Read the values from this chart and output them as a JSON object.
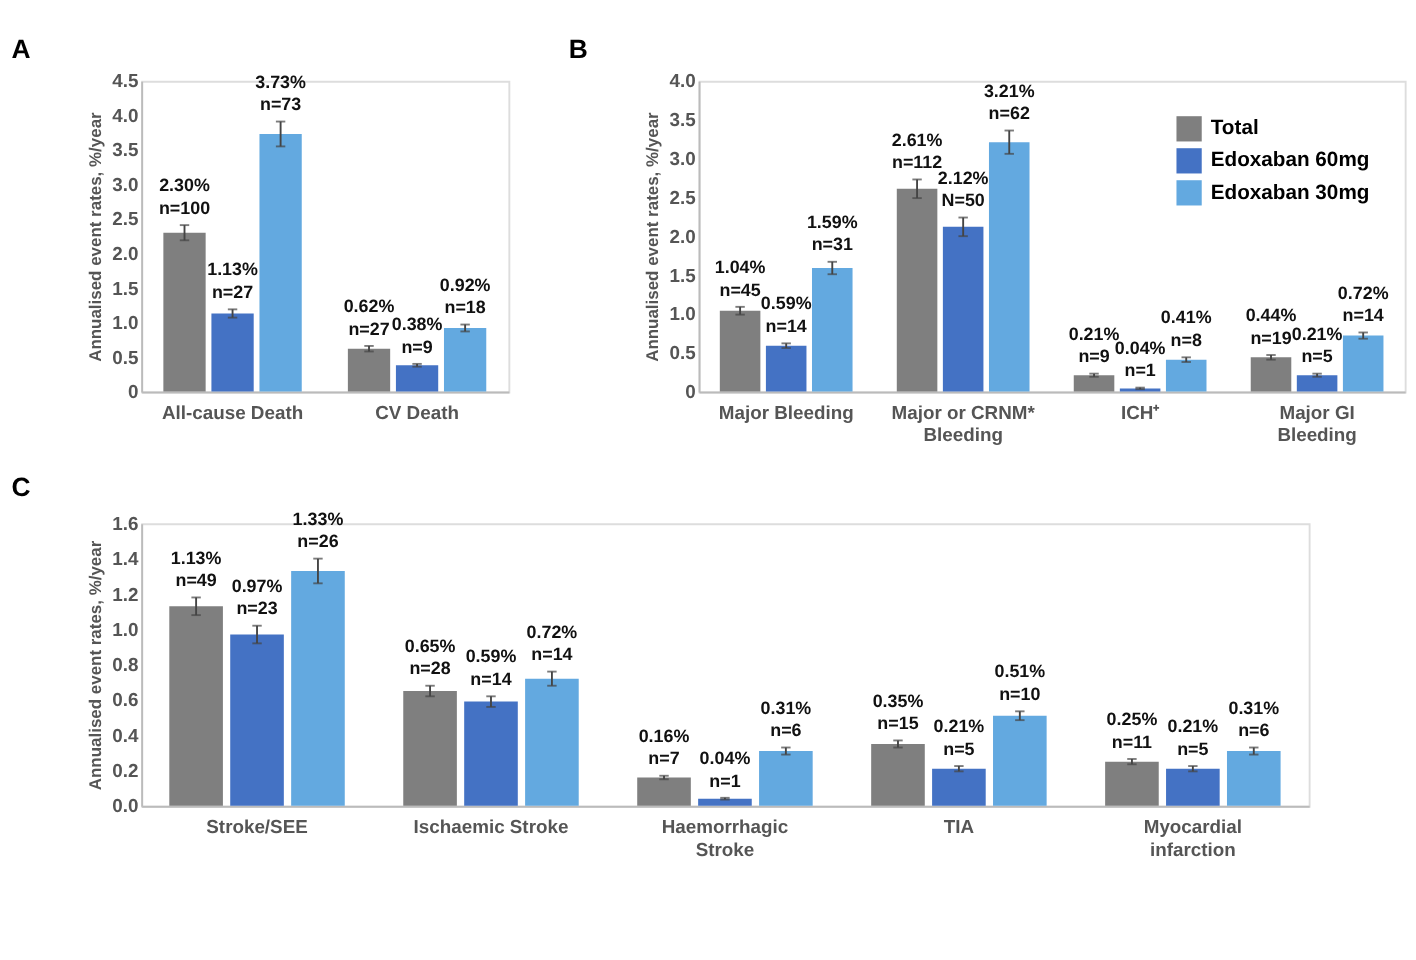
{
  "chart_data": [
    {
      "type": "bar",
      "title": "A",
      "ylabel": "Annualised event rates, %/year",
      "categories": [
        "All-cause Death",
        "CV Death"
      ],
      "ylim": [
        0,
        4.5
      ],
      "yticks": [
        0,
        {
          "value": 0.5,
          "label": "0.5"
        },
        {
          "value": 1,
          "label": "1.0"
        },
        {
          "value": 1.5,
          "label": "1.5"
        },
        {
          "value": 2,
          "label": "2.0"
        },
        {
          "value": 2.5,
          "label": "2.5"
        },
        {
          "value": 3,
          "label": "3.0"
        },
        {
          "value": 3.5,
          "label": "3.5"
        },
        {
          "value": 4,
          "label": "4.0"
        },
        {
          "value": 4.5,
          "label": "4.5"
        }
      ],
      "series": [
        {
          "color": "#7f7f7f",
          "values": [
            2.3,
            0.62
          ],
          "errors": [
            0.11,
            0.04
          ],
          "value_labels": [
            "2.30%\nn=100",
            "0.62%\nn=27"
          ]
        },
        {
          "color": "#4472c4",
          "values": [
            1.13,
            0.38
          ],
          "errors": [
            0.06,
            0.02
          ],
          "value_labels": [
            "1.13%\nn=27",
            "0.38%\nn=9"
          ]
        },
        {
          "color": "#63a9e0",
          "values": [
            3.73,
            0.92
          ],
          "errors": [
            0.18,
            0.05
          ],
          "value_labels": [
            "3.73%\nn=73",
            "0.92%\nn=18"
          ]
        }
      ]
    },
    {
      "type": "bar",
      "title": "B",
      "ylabel": "Annualised event rates, %/year",
      "categories": [
        "Major Bleeding",
        "Major or CRNM* Bleeding",
        "ICH⁺",
        "Major GI Bleeding"
      ],
      "ylim": [
        0,
        4.0
      ],
      "yticks": [
        0,
        {
          "value": 0.5,
          "label": "0.5"
        },
        {
          "value": 1,
          "label": "1.0"
        },
        {
          "value": 1.5,
          "label": "1.5"
        },
        {
          "value": 2,
          "label": "2.0"
        },
        {
          "value": 2.5,
          "label": "2.5"
        },
        {
          "value": 3,
          "label": "3.0"
        },
        {
          "value": 3.5,
          "label": "3.5"
        },
        {
          "value": 4,
          "label": "4.0"
        }
      ],
      "legend": "top right",
      "series": [
        {
          "name": "Total",
          "color": "#7f7f7f",
          "values": [
            1.04,
            2.61,
            0.21,
            0.44
          ],
          "errors": [
            0.05,
            0.12,
            0.02,
            0.03
          ],
          "value_labels": [
            "1.04%\nn=45",
            "2.61%\nn=112",
            "0.21%\nn=9",
            "0.44%\nn=19"
          ]
        },
        {
          "name": "Edoxaban 60mg",
          "color": "#4472c4",
          "values": [
            0.59,
            2.12,
            0.04,
            0.21
          ],
          "errors": [
            0.03,
            0.12,
            0.01,
            0.02
          ],
          "value_labels": [
            "0.59%\nn=14",
            "2.12%\nN=50",
            "0.04%\nn=1",
            "0.21%\nn=5"
          ]
        },
        {
          "name": "Edoxaban 30mg",
          "color": "#63a9e0",
          "values": [
            1.59,
            3.21,
            0.41,
            0.72
          ],
          "errors": [
            0.08,
            0.15,
            0.03,
            0.04
          ],
          "value_labels": [
            "1.59%\nn=31",
            "3.21%\nn=62",
            "0.41%\nn=8",
            "0.72%\nn=14"
          ]
        }
      ]
    },
    {
      "type": "bar",
      "title": "C",
      "ylabel": "Annualised event rates, %/year",
      "categories": [
        "Stroke/SEE",
        "Ischaemic Stroke",
        "Haemorrhagic Stroke",
        "TIA",
        "Myocardial infarction"
      ],
      "ylim": [
        0,
        1.6
      ],
      "yticks": [
        {
          "value": 0,
          "label": "0.0"
        },
        {
          "value": 0.2,
          "label": "0.2"
        },
        {
          "value": 0.4,
          "label": "0.4"
        },
        {
          "value": 0.6,
          "label": "0.6"
        },
        {
          "value": 0.8,
          "label": "0.8"
        },
        {
          "value": 1,
          "label": "1.0"
        },
        {
          "value": 1.2,
          "label": "1.2"
        },
        {
          "value": 1.4,
          "label": "1.4"
        },
        {
          "value": 1.6,
          "label": "1.6"
        }
      ],
      "series": [
        {
          "color": "#7f7f7f",
          "values": [
            1.13,
            0.65,
            0.16,
            0.35,
            0.25
          ],
          "errors": [
            0.05,
            0.03,
            0.01,
            0.02,
            0.015
          ],
          "value_labels": [
            "1.13%\nn=49",
            "0.65%\nn=28",
            "0.16%\nn=7",
            "0.35%\nn=15",
            "0.25%\nn=11"
          ]
        },
        {
          "color": "#4472c4",
          "values": [
            0.97,
            0.59,
            0.04,
            0.21,
            0.21
          ],
          "errors": [
            0.05,
            0.03,
            0.005,
            0.015,
            0.015
          ],
          "value_labels": [
            "0.97%\nn=23",
            "0.59%\nn=14",
            "0.04%\nn=1",
            "0.21%\nn=5",
            "0.21%\nn=5"
          ]
        },
        {
          "color": "#63a9e0",
          "values": [
            1.33,
            0.72,
            0.31,
            0.51,
            0.31
          ],
          "errors": [
            0.07,
            0.04,
            0.02,
            0.025,
            0.02
          ],
          "value_labels": [
            "1.33%\nn=26",
            "0.72%\nn=14",
            "0.31%\nn=6",
            "0.51%\nn=10",
            "0.31%\nn=6"
          ]
        }
      ]
    }
  ]
}
